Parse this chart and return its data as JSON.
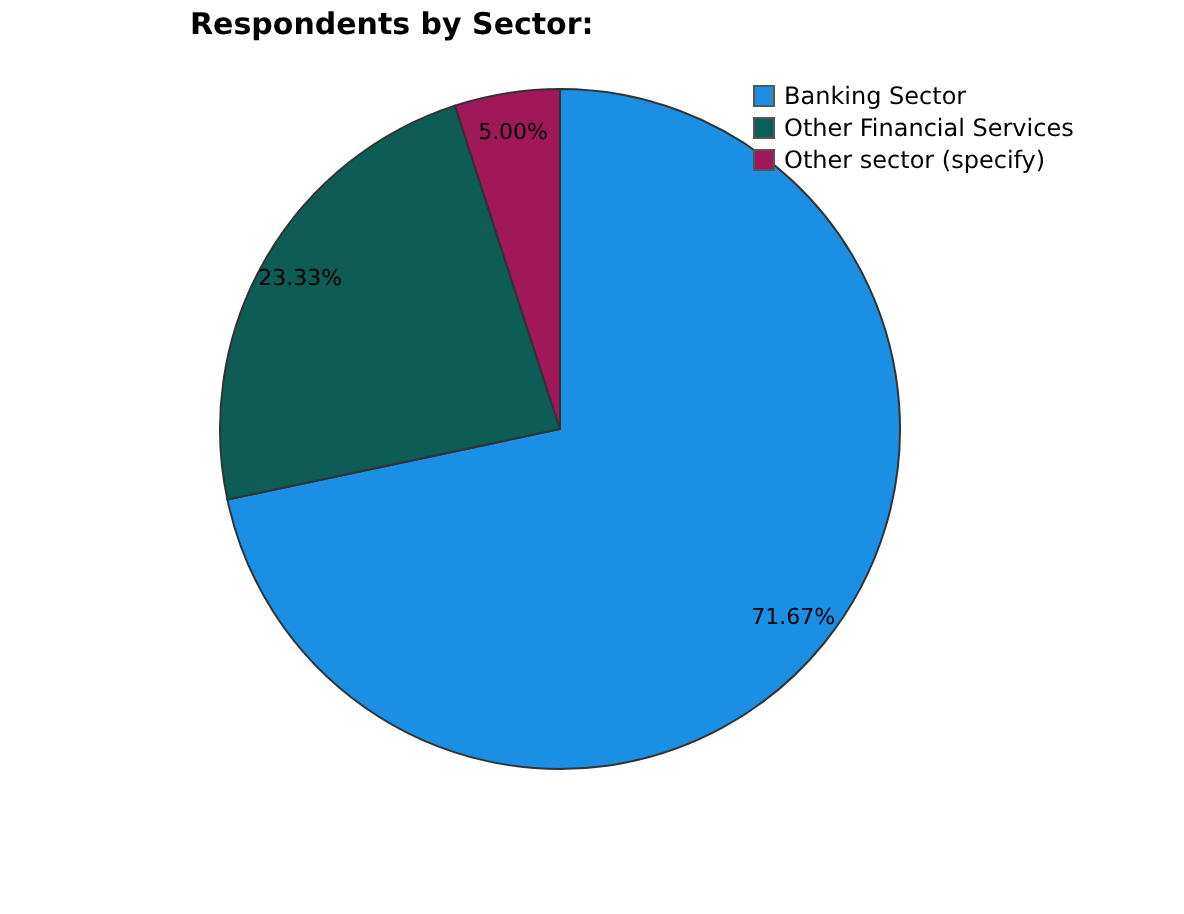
{
  "chart_data": {
    "type": "pie",
    "title": "Respondents by Sector:",
    "categories": [
      "Banking Sector",
      "Other Financial Services",
      "Other sector (specify)"
    ],
    "values": [
      71.67,
      23.33,
      5.0
    ],
    "colors": [
      "#1a8fe3",
      "#0d5c55",
      "#a0185a"
    ],
    "value_labels": [
      "71.67%",
      "23.33%",
      "5.00%"
    ],
    "legend": "top right"
  }
}
